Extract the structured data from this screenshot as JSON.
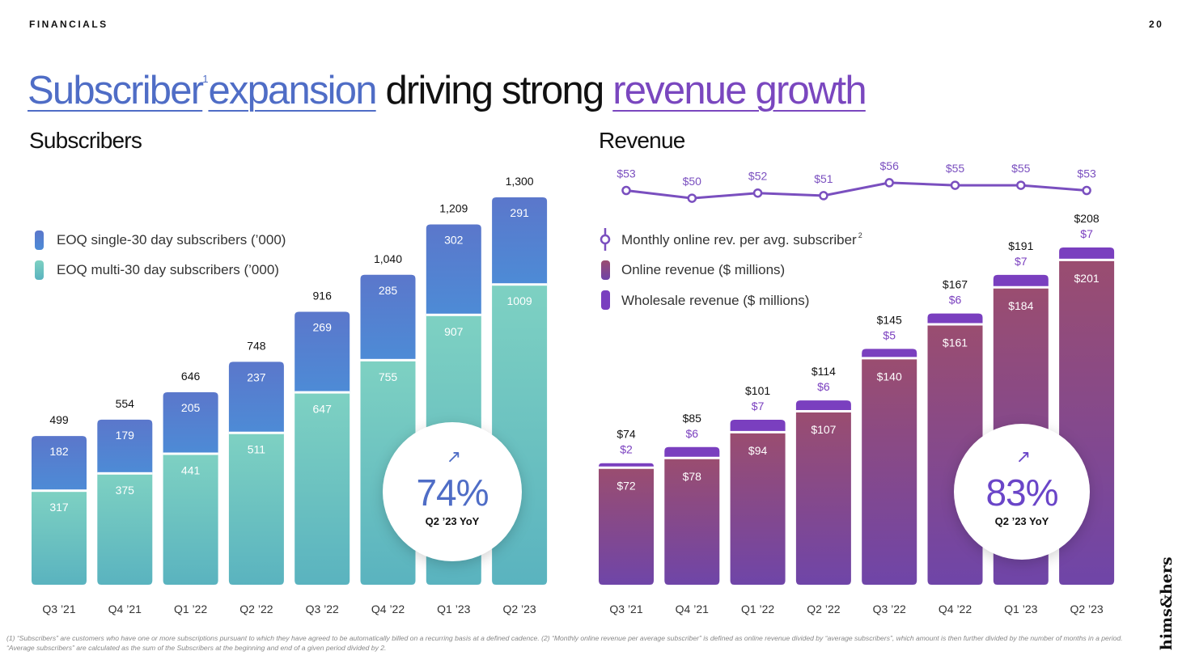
{
  "header": {
    "section": "FINANCIALS",
    "page_number": "20",
    "headline": {
      "part1": "Subscriber",
      "sup": "1",
      "part2": "expansion",
      "part3": " driving strong ",
      "part4": "revenue growth"
    }
  },
  "brand": "hims&hers",
  "footnote": "(1) “Subscribers” are customers who have one or more subscriptions pursuant to which they have agreed to be automatically billed on a recurring basis at a defined cadence. (2) “Monthly online revenue per average subscriber” is defined as online revenue divided by “average subscribers”, which amount is then further divided by the number of months in a period. “Average subscribers” are calculated as the sum of the Subscribers at the beginning and end of a given period divided by 2.",
  "colors": {
    "single_top": "#5b77cb",
    "single_bottom": "#4d8bd6",
    "multi_top": "#7ed1c2",
    "multi_bottom": "#5ab3bf",
    "online_top": "#9a4d70",
    "online_bottom": "#6f45a8",
    "wholesale": "#7a3fbf",
    "line": "#7a4fbf",
    "growth_text": "#6a45c8",
    "growth_arrow": "#4f6dc6"
  },
  "chart_data": [
    {
      "type": "bar",
      "stacked": true,
      "title": "Subscribers",
      "categories": [
        "Q3 ’21",
        "Q4 ’21",
        "Q1 ’22",
        "Q2 ’22",
        "Q3 ’22",
        "Q4 ’22",
        "Q1 ’23",
        "Q2 ’23"
      ],
      "series": [
        {
          "name": "EOQ multi-30 day subscribers  (’000)",
          "values": [
            317,
            375,
            441,
            511,
            647,
            755,
            907,
            1009
          ]
        },
        {
          "name": "EOQ single-30 day subscribers (’000)",
          "values": [
            182,
            179,
            205,
            237,
            269,
            285,
            302,
            291
          ]
        }
      ],
      "totals": [
        "499",
        "554",
        "646",
        "748",
        "916",
        "1,040",
        "1,209",
        "1,300"
      ],
      "ylim": [
        0,
        1300
      ],
      "legend": "top-left",
      "callout": {
        "value": "74%",
        "label": "Q2 ’23 YoY",
        "arrow": "↗"
      }
    },
    {
      "type": "bar",
      "stacked": true,
      "title": "Revenue",
      "categories": [
        "Q3 ’21",
        "Q4 ’21",
        "Q1 ’22",
        "Q2 ’22",
        "Q3 ’22",
        "Q4 ’22",
        "Q1 ’23",
        "Q2 ’23"
      ],
      "series": [
        {
          "name": "Online revenue ($ millions)",
          "values": [
            72,
            78,
            94,
            107,
            140,
            161,
            184,
            201
          ]
        },
        {
          "name": "Wholesale revenue ($ millions)",
          "values": [
            2,
            6,
            7,
            6,
            5,
            6,
            7,
            7
          ]
        }
      ],
      "totals": [
        74,
        85,
        101,
        114,
        145,
        167,
        191,
        208
      ],
      "line_series": {
        "name": "Monthly online rev. per avg. subscriber",
        "name_sup": "2",
        "values": [
          53,
          50,
          52,
          51,
          56,
          55,
          55,
          53
        ]
      },
      "ylim": [
        0,
        208
      ],
      "legend": "top-left",
      "callout": {
        "value": "83%",
        "label": "Q2 ’23 YoY",
        "arrow": "↗"
      }
    }
  ]
}
